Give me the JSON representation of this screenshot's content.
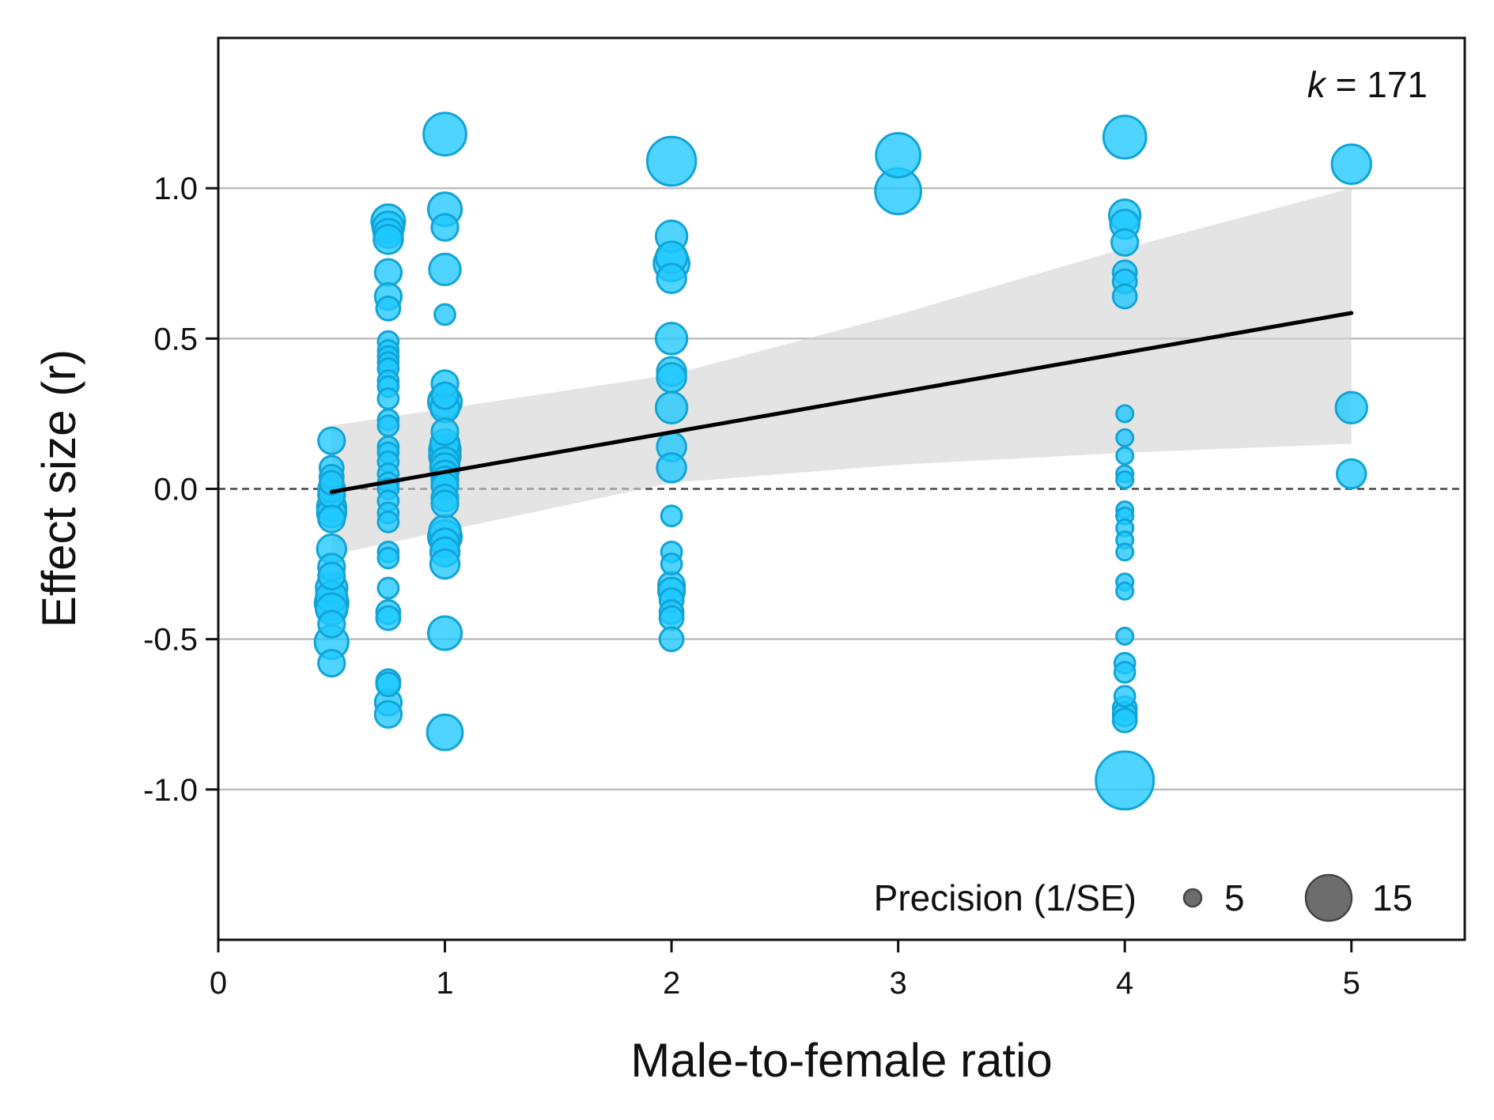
{
  "chart_data": {
    "type": "scatter",
    "xlabel": "Male-to-female ratio",
    "ylabel": "Effect size (r)",
    "xlim": [
      0,
      5.5
    ],
    "ylim": [
      -1.5,
      1.5
    ],
    "x_ticks": [
      0,
      1,
      2,
      3,
      4,
      5
    ],
    "x_tick_labels": [
      "0",
      "1",
      "2",
      "3",
      "4",
      "5"
    ],
    "y_ticks": [
      -1.0,
      -0.5,
      0.0,
      0.5,
      1.0
    ],
    "y_tick_labels": [
      "-1.0",
      "-0.5",
      "0.0",
      "0.5",
      "1.0"
    ],
    "grid": "horizontal major",
    "reference_line": 0,
    "annotation": {
      "prefix": "k",
      "text": " = 171"
    },
    "point_color": "#1ec8ff",
    "legend": {
      "title": "Precision (1/SE)",
      "placement": "bottom-right",
      "entries": [
        {
          "label": "5",
          "precision": 5
        },
        {
          "label": "15",
          "precision": 15
        }
      ]
    },
    "regression": {
      "x": [
        0.5,
        5.0
      ],
      "y": [
        -0.01,
        0.585
      ],
      "ci_upper": [
        [
          0.5,
          0.21
        ],
        [
          2.0,
          0.38
        ],
        [
          3.0,
          0.58
        ],
        [
          4.0,
          0.8
        ],
        [
          5.0,
          1.0
        ]
      ],
      "ci_lower": [
        [
          0.5,
          -0.22
        ],
        [
          2.0,
          0.02
        ],
        [
          3.0,
          0.08
        ],
        [
          4.0,
          0.12
        ],
        [
          5.0,
          0.15
        ]
      ]
    },
    "points": [
      {
        "x": 0.5,
        "y": 0.16,
        "precision": 5
      },
      {
        "x": 0.5,
        "y": 0.07,
        "precision": 4
      },
      {
        "x": 0.5,
        "y": 0.04,
        "precision": 4
      },
      {
        "x": 0.5,
        "y": 0.02,
        "precision": 4
      },
      {
        "x": 0.5,
        "y": 0.0,
        "precision": 5
      },
      {
        "x": 0.5,
        "y": -0.02,
        "precision": 5
      },
      {
        "x": 0.5,
        "y": -0.06,
        "precision": 6
      },
      {
        "x": 0.5,
        "y": -0.08,
        "precision": 6
      },
      {
        "x": 0.5,
        "y": -0.1,
        "precision": 5
      },
      {
        "x": 0.5,
        "y": -0.2,
        "precision": 6
      },
      {
        "x": 0.5,
        "y": -0.26,
        "precision": 5
      },
      {
        "x": 0.5,
        "y": -0.29,
        "precision": 5
      },
      {
        "x": 0.5,
        "y": -0.33,
        "precision": 7
      },
      {
        "x": 0.5,
        "y": -0.36,
        "precision": 7
      },
      {
        "x": 0.5,
        "y": -0.38,
        "precision": 8
      },
      {
        "x": 0.5,
        "y": -0.4,
        "precision": 7
      },
      {
        "x": 0.5,
        "y": -0.45,
        "precision": 5
      },
      {
        "x": 0.5,
        "y": -0.51,
        "precision": 8
      },
      {
        "x": 0.5,
        "y": -0.58,
        "precision": 5
      },
      {
        "x": 0.75,
        "y": 0.89,
        "precision": 8
      },
      {
        "x": 0.75,
        "y": 0.87,
        "precision": 7
      },
      {
        "x": 0.75,
        "y": 0.85,
        "precision": 6
      },
      {
        "x": 0.75,
        "y": 0.83,
        "precision": 6
      },
      {
        "x": 0.75,
        "y": 0.72,
        "precision": 5
      },
      {
        "x": 0.75,
        "y": 0.64,
        "precision": 5
      },
      {
        "x": 0.75,
        "y": 0.6,
        "precision": 4
      },
      {
        "x": 0.75,
        "y": 0.49,
        "precision": 3
      },
      {
        "x": 0.75,
        "y": 0.46,
        "precision": 3
      },
      {
        "x": 0.75,
        "y": 0.44,
        "precision": 3
      },
      {
        "x": 0.75,
        "y": 0.42,
        "precision": 3
      },
      {
        "x": 0.75,
        "y": 0.4,
        "precision": 3
      },
      {
        "x": 0.75,
        "y": 0.36,
        "precision": 3
      },
      {
        "x": 0.75,
        "y": 0.34,
        "precision": 3
      },
      {
        "x": 0.75,
        "y": 0.3,
        "precision": 3
      },
      {
        "x": 0.75,
        "y": 0.23,
        "precision": 3
      },
      {
        "x": 0.75,
        "y": 0.21,
        "precision": 3
      },
      {
        "x": 0.75,
        "y": 0.14,
        "precision": 3
      },
      {
        "x": 0.75,
        "y": 0.12,
        "precision": 3
      },
      {
        "x": 0.75,
        "y": 0.09,
        "precision": 3
      },
      {
        "x": 0.75,
        "y": 0.05,
        "precision": 3
      },
      {
        "x": 0.75,
        "y": 0.02,
        "precision": 3
      },
      {
        "x": 0.75,
        "y": 0.0,
        "precision": 3
      },
      {
        "x": 0.75,
        "y": -0.04,
        "precision": 3
      },
      {
        "x": 0.75,
        "y": -0.08,
        "precision": 3
      },
      {
        "x": 0.75,
        "y": -0.11,
        "precision": 3
      },
      {
        "x": 0.75,
        "y": -0.21,
        "precision": 3
      },
      {
        "x": 0.75,
        "y": -0.23,
        "precision": 3
      },
      {
        "x": 0.75,
        "y": -0.33,
        "precision": 3
      },
      {
        "x": 0.75,
        "y": -0.41,
        "precision": 4
      },
      {
        "x": 0.75,
        "y": -0.43,
        "precision": 4
      },
      {
        "x": 0.75,
        "y": -0.64,
        "precision": 4
      },
      {
        "x": 0.75,
        "y": -0.65,
        "precision": 4
      },
      {
        "x": 0.75,
        "y": -0.71,
        "precision": 5
      },
      {
        "x": 0.75,
        "y": -0.75,
        "precision": 5
      },
      {
        "x": 1.0,
        "y": 1.18,
        "precision": 13
      },
      {
        "x": 1.0,
        "y": 0.93,
        "precision": 8
      },
      {
        "x": 1.0,
        "y": 0.87,
        "precision": 5
      },
      {
        "x": 1.0,
        "y": 0.73,
        "precision": 7
      },
      {
        "x": 1.0,
        "y": 0.58,
        "precision": 3
      },
      {
        "x": 1.0,
        "y": 0.35,
        "precision": 5
      },
      {
        "x": 1.0,
        "y": 0.31,
        "precision": 5
      },
      {
        "x": 1.0,
        "y": 0.29,
        "precision": 8
      },
      {
        "x": 1.0,
        "y": 0.27,
        "precision": 6
      },
      {
        "x": 1.0,
        "y": 0.19,
        "precision": 5
      },
      {
        "x": 1.0,
        "y": 0.15,
        "precision": 6
      },
      {
        "x": 1.0,
        "y": 0.13,
        "precision": 7
      },
      {
        "x": 1.0,
        "y": 0.11,
        "precision": 7
      },
      {
        "x": 1.0,
        "y": 0.09,
        "precision": 6
      },
      {
        "x": 1.0,
        "y": 0.07,
        "precision": 6
      },
      {
        "x": 1.0,
        "y": 0.05,
        "precision": 5
      },
      {
        "x": 1.0,
        "y": 0.03,
        "precision": 5
      },
      {
        "x": 1.0,
        "y": 0.01,
        "precision": 5
      },
      {
        "x": 1.0,
        "y": -0.03,
        "precision": 5
      },
      {
        "x": 1.0,
        "y": -0.05,
        "precision": 5
      },
      {
        "x": 1.0,
        "y": -0.14,
        "precision": 7
      },
      {
        "x": 1.0,
        "y": -0.16,
        "precision": 8
      },
      {
        "x": 1.0,
        "y": -0.18,
        "precision": 6
      },
      {
        "x": 1.0,
        "y": -0.21,
        "precision": 6
      },
      {
        "x": 1.0,
        "y": -0.25,
        "precision": 6
      },
      {
        "x": 1.0,
        "y": -0.48,
        "precision": 8
      },
      {
        "x": 1.0,
        "y": -0.81,
        "precision": 9
      },
      {
        "x": 2.0,
        "y": 1.09,
        "precision": 17
      },
      {
        "x": 2.0,
        "y": 0.84,
        "precision": 7
      },
      {
        "x": 2.0,
        "y": 0.77,
        "precision": 7
      },
      {
        "x": 2.0,
        "y": 0.75,
        "precision": 9
      },
      {
        "x": 2.0,
        "y": 0.7,
        "precision": 6
      },
      {
        "x": 2.0,
        "y": 0.5,
        "precision": 7
      },
      {
        "x": 2.0,
        "y": 0.39,
        "precision": 6
      },
      {
        "x": 2.0,
        "y": 0.37,
        "precision": 6
      },
      {
        "x": 2.0,
        "y": 0.27,
        "precision": 7
      },
      {
        "x": 2.0,
        "y": 0.14,
        "precision": 6
      },
      {
        "x": 2.0,
        "y": 0.07,
        "precision": 6
      },
      {
        "x": 2.0,
        "y": -0.09,
        "precision": 3
      },
      {
        "x": 2.0,
        "y": -0.21,
        "precision": 3
      },
      {
        "x": 2.0,
        "y": -0.25,
        "precision": 3
      },
      {
        "x": 2.0,
        "y": -0.32,
        "precision": 5
      },
      {
        "x": 2.0,
        "y": -0.34,
        "precision": 5
      },
      {
        "x": 2.0,
        "y": -0.37,
        "precision": 4
      },
      {
        "x": 2.0,
        "y": -0.41,
        "precision": 4
      },
      {
        "x": 2.0,
        "y": -0.43,
        "precision": 4
      },
      {
        "x": 2.0,
        "y": -0.5,
        "precision": 4
      },
      {
        "x": 3.0,
        "y": 1.11,
        "precision": 14
      },
      {
        "x": 3.0,
        "y": 0.99,
        "precision": 15
      },
      {
        "x": 4.0,
        "y": 1.17,
        "precision": 13
      },
      {
        "x": 4.0,
        "y": 0.91,
        "precision": 7
      },
      {
        "x": 4.0,
        "y": 0.88,
        "precision": 6
      },
      {
        "x": 4.0,
        "y": 0.82,
        "precision": 5
      },
      {
        "x": 4.0,
        "y": 0.72,
        "precision": 4
      },
      {
        "x": 4.0,
        "y": 0.69,
        "precision": 4
      },
      {
        "x": 4.0,
        "y": 0.64,
        "precision": 4
      },
      {
        "x": 4.0,
        "y": 0.25,
        "precision": 2
      },
      {
        "x": 4.0,
        "y": 0.17,
        "precision": 2
      },
      {
        "x": 4.0,
        "y": 0.11,
        "precision": 2
      },
      {
        "x": 4.0,
        "y": 0.05,
        "precision": 2
      },
      {
        "x": 4.0,
        "y": 0.03,
        "precision": 2
      },
      {
        "x": 4.0,
        "y": -0.07,
        "precision": 2
      },
      {
        "x": 4.0,
        "y": -0.09,
        "precision": 2
      },
      {
        "x": 4.0,
        "y": -0.13,
        "precision": 2
      },
      {
        "x": 4.0,
        "y": -0.17,
        "precision": 2
      },
      {
        "x": 4.0,
        "y": -0.21,
        "precision": 2
      },
      {
        "x": 4.0,
        "y": -0.31,
        "precision": 2
      },
      {
        "x": 4.0,
        "y": -0.34,
        "precision": 2
      },
      {
        "x": 4.0,
        "y": -0.49,
        "precision": 2
      },
      {
        "x": 4.0,
        "y": -0.58,
        "precision": 3
      },
      {
        "x": 4.0,
        "y": -0.61,
        "precision": 3
      },
      {
        "x": 4.0,
        "y": -0.69,
        "precision": 3
      },
      {
        "x": 4.0,
        "y": -0.73,
        "precision": 4
      },
      {
        "x": 4.0,
        "y": -0.75,
        "precision": 4
      },
      {
        "x": 4.0,
        "y": -0.77,
        "precision": 4
      },
      {
        "x": 4.0,
        "y": -0.97,
        "precision": 24
      },
      {
        "x": 5.0,
        "y": 1.08,
        "precision": 11
      },
      {
        "x": 5.0,
        "y": 0.27,
        "precision": 7
      },
      {
        "x": 5.0,
        "y": 0.05,
        "precision": 6
      }
    ]
  }
}
